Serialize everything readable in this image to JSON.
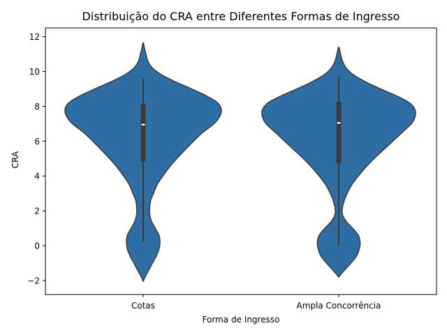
{
  "chart_data": {
    "type": "violin",
    "title": "Distribuição do CRA entre Diferentes Formas de Ingresso",
    "xlabel": "Forma de Ingresso",
    "ylabel": "CRA",
    "ylim": [
      -2.8,
      12.5
    ],
    "yticks": [
      -2,
      0,
      2,
      4,
      6,
      8,
      10,
      12
    ],
    "ytick_labels": [
      "−2",
      "0",
      "2",
      "4",
      "6",
      "8",
      "10",
      "12"
    ],
    "grid": false,
    "fill_color": "#2f6ea5",
    "edge_color": "#3a3a3a",
    "box_color": "#3a3a3a",
    "median_color": "#ffffff",
    "categories": [
      {
        "name": "Cotas",
        "box": {
          "q1": 4.85,
          "median": 6.95,
          "q3": 8.15,
          "whisker_low": 0.25,
          "whisker_high": 9.6
        },
        "density": {
          "y": [
            -2.05,
            -1.8,
            -1.4,
            -1.0,
            -0.6,
            -0.2,
            0.2,
            0.6,
            1.0,
            1.4,
            1.8,
            2.2,
            2.6,
            3.0,
            3.5,
            4.0,
            4.5,
            5.0,
            5.5,
            6.0,
            6.5,
            7.0,
            7.4,
            7.8,
            8.2,
            8.6,
            9.0,
            9.4,
            9.8,
            10.2,
            10.6,
            11.0,
            11.3,
            11.65
          ],
          "hw": [
            0.0,
            0.02,
            0.06,
            0.1,
            0.14,
            0.17,
            0.18,
            0.17,
            0.13,
            0.09,
            0.07,
            0.07,
            0.08,
            0.11,
            0.15,
            0.21,
            0.28,
            0.36,
            0.45,
            0.54,
            0.64,
            0.76,
            0.82,
            0.84,
            0.8,
            0.68,
            0.52,
            0.35,
            0.2,
            0.1,
            0.05,
            0.03,
            0.015,
            0.0
          ]
        }
      },
      {
        "name": "Ampla Concorrência",
        "box": {
          "q1": 4.75,
          "median": 7.05,
          "q3": 8.25,
          "whisker_low": 0.0,
          "whisker_high": 9.7
        },
        "density": {
          "y": [
            -1.8,
            -1.6,
            -1.3,
            -1.0,
            -0.6,
            -0.2,
            0.2,
            0.6,
            1.0,
            1.4,
            1.8,
            2.2,
            2.6,
            3.0,
            3.5,
            4.0,
            4.5,
            5.0,
            5.5,
            6.0,
            6.5,
            7.0,
            7.4,
            7.8,
            8.2,
            8.6,
            9.0,
            9.4,
            9.8,
            10.2,
            10.6,
            11.0,
            11.4
          ],
          "hw": [
            0.0,
            0.03,
            0.08,
            0.13,
            0.19,
            0.22,
            0.23,
            0.21,
            0.15,
            0.08,
            0.04,
            0.04,
            0.06,
            0.09,
            0.14,
            0.21,
            0.29,
            0.38,
            0.48,
            0.58,
            0.68,
            0.78,
            0.82,
            0.82,
            0.76,
            0.62,
            0.45,
            0.29,
            0.16,
            0.08,
            0.04,
            0.02,
            0.0
          ]
        }
      }
    ]
  }
}
